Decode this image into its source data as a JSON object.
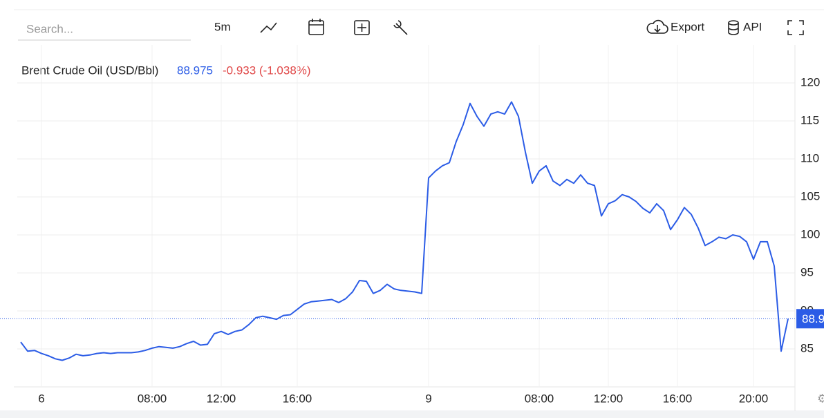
{
  "toolbar": {
    "search": "Search...",
    "interval": "5m",
    "export": "Export",
    "api": "API"
  },
  "chart_data": {
    "type": "line",
    "title": "Brent Crude Oil (USD/Bbl)",
    "last_price": 88.975,
    "change": "-0.933 (-1.038%)",
    "categories": [
      null,
      null,
      null,
      "6",
      null,
      null,
      null,
      null,
      null,
      null,
      null,
      null,
      null,
      null,
      null,
      null,
      null,
      null,
      null,
      "08:00",
      null,
      null,
      null,
      null,
      null,
      null,
      null,
      null,
      null,
      "12:00",
      null,
      null,
      null,
      null,
      null,
      null,
      null,
      null,
      null,
      null,
      "16:00",
      null,
      null,
      null,
      null,
      null,
      null,
      null,
      null,
      null,
      null,
      null,
      null,
      null,
      null,
      null,
      null,
      null,
      null,
      "9",
      null,
      null,
      null,
      null,
      null,
      null,
      null,
      null,
      null,
      null,
      null,
      null,
      null,
      null,
      null,
      "08:00",
      null,
      null,
      null,
      null,
      null,
      null,
      null,
      null,
      null,
      "12:00",
      null,
      null,
      null,
      null,
      null,
      null,
      null,
      null,
      null,
      "16:00",
      null,
      null,
      null,
      null,
      null,
      null,
      null,
      null,
      null,
      null,
      "20:00",
      null,
      null,
      null,
      null,
      null
    ],
    "series": [
      {
        "name": "Brent Crude Oil",
        "color": "#2b5ce6",
        "values": [
          85.9,
          84.7,
          84.8,
          84.4,
          84.1,
          83.7,
          83.5,
          83.8,
          84.3,
          84.1,
          84.2,
          84.4,
          84.5,
          84.4,
          84.5,
          84.5,
          84.5,
          84.6,
          84.8,
          85.1,
          85.3,
          85.2,
          85.1,
          85.3,
          85.7,
          86.0,
          85.5,
          85.6,
          87.0,
          87.3,
          86.9,
          87.3,
          87.5,
          88.2,
          89.1,
          89.3,
          89.1,
          88.9,
          89.4,
          89.5,
          90.2,
          90.9,
          91.2,
          91.3,
          91.4,
          91.5,
          91.1,
          91.6,
          92.5,
          94.0,
          93.9,
          92.3,
          92.7,
          93.5,
          92.9,
          92.7,
          92.6,
          92.5,
          92.3,
          107.5,
          108.4,
          109.1,
          109.5,
          112.3,
          114.5,
          117.3,
          115.6,
          114.3,
          115.9,
          116.2,
          115.9,
          117.5,
          115.6,
          110.9,
          106.8,
          108.4,
          109.1,
          107.1,
          106.5,
          107.3,
          106.8,
          107.9,
          106.8,
          106.5,
          102.5,
          104.1,
          104.5,
          105.3,
          105.0,
          104.4,
          103.5,
          102.9,
          104.1,
          103.2,
          100.7,
          102.0,
          103.6,
          102.7,
          100.9,
          98.6,
          99.1,
          99.7,
          99.5,
          100.0,
          99.8,
          99.1,
          96.8,
          99.1,
          99.1,
          95.9,
          84.7,
          88.975
        ]
      }
    ],
    "ylim": [
      80,
      125
    ],
    "yticks": [
      85,
      90,
      95,
      100,
      105,
      110,
      115,
      120
    ],
    "grid": true
  }
}
